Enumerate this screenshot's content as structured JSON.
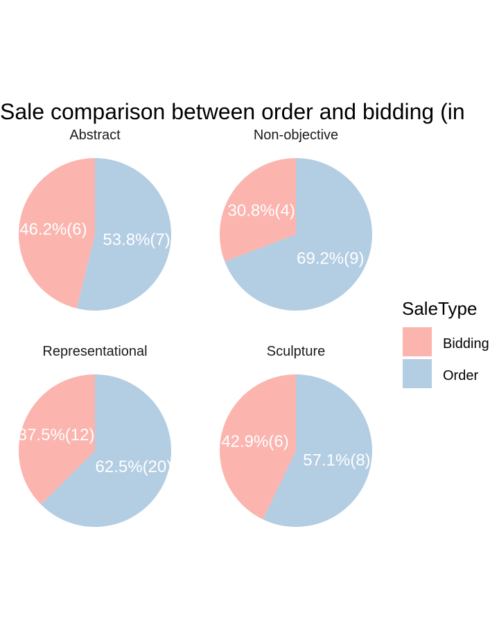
{
  "chart_data": {
    "type": "pie",
    "title": "Sale comparison between order and bidding (in",
    "legend": {
      "title": "SaleType",
      "placement": "right",
      "entries": [
        {
          "label": "Bidding",
          "color": "#fbb4ae"
        },
        {
          "label": "Order",
          "color": "#b3cde3"
        }
      ]
    },
    "categories": [
      "Bidding",
      "Order"
    ],
    "panels": [
      {
        "name": "Abstract",
        "values": [
          6,
          7
        ],
        "labels": [
          "46.2%(6)",
          "53.8%(7)"
        ]
      },
      {
        "name": "Non-objective",
        "values": [
          4,
          9
        ],
        "labels": [
          "30.8%(4)",
          "69.2%(9)"
        ]
      },
      {
        "name": "Representational",
        "values": [
          12,
          20
        ],
        "labels": [
          "37.5%(12)",
          "62.5%(20)"
        ]
      },
      {
        "name": "Sculpture",
        "values": [
          6,
          8
        ],
        "labels": [
          "42.9%(6)",
          "57.1%(8)"
        ]
      }
    ]
  }
}
